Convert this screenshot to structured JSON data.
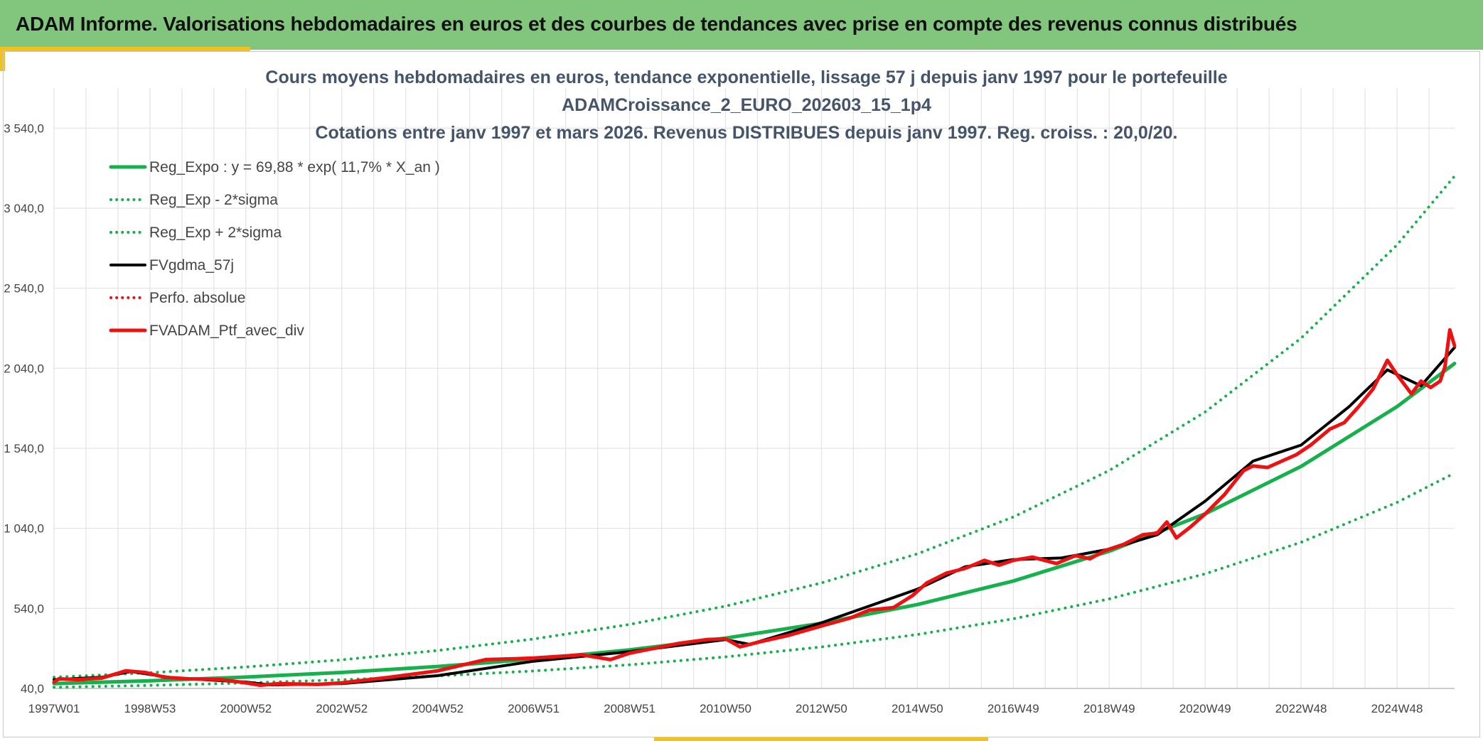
{
  "header": {
    "title": "ADAM Informe. Valorisations hebdomadaires en euros et des courbes de tendances avec prise en compte des revenus connus distribués"
  },
  "colors": {
    "header_bg": "#82c67d",
    "accent": "#f2c21b",
    "green_series": "#16b04c",
    "red_series": "#ee1111",
    "black_series": "#000000"
  },
  "chart_data": {
    "type": "line",
    "title_lines": [
      "Cours moyens hebdomadaires en euros, tendance exponentielle, lissage 57 j depuis janv 1997 pour le portefeuille",
      "ADAMCroissance_2_EURO_202603_15_1p4",
      "Cotations entre janv 1997 et mars 2026. Revenus DISTRIBUES depuis janv 1997. Reg. croiss. : 20,0/20."
    ],
    "xlabel": "",
    "ylabel": "",
    "ylim": [
      40,
      3790
    ],
    "y_ticks": [
      "40,0",
      "540,0",
      "1 040,0",
      "1 540,0",
      "2 040,0",
      "2 540,0",
      "3 040,0",
      "3 540,0"
    ],
    "y_tick_values": [
      40,
      540,
      1040,
      1540,
      2040,
      2540,
      3040,
      3540
    ],
    "xlim": [
      1997.0,
      2026.2
    ],
    "x_ticks": [
      "1997W01",
      "1998W53",
      "2000W52",
      "2002W52",
      "2004W52",
      "2006W51",
      "2008W51",
      "2010W50",
      "2012W50",
      "2014W50",
      "2016W49",
      "2018W49",
      "2020W49",
      "2022W48",
      "2024W48"
    ],
    "x_tick_values": [
      1997.0,
      1999.0,
      2001.0,
      2003.0,
      2005.0,
      2007.0,
      2009.0,
      2011.0,
      2013.0,
      2015.0,
      2017.0,
      2019.0,
      2021.0,
      2023.0,
      2025.0
    ],
    "grid": true,
    "legend_position": "top-left",
    "series": [
      {
        "name": "Reg_Expo : y = 69,88 * exp( 11,7% *  X_an )",
        "color": "#16b04c",
        "style": "solid",
        "width": 5,
        "x": [
          1997.0,
          1999.0,
          2001.0,
          2003.0,
          2005.0,
          2007.0,
          2009.0,
          2011.0,
          2013.0,
          2015.0,
          2017.0,
          2019.0,
          2021.0,
          2023.0,
          2025.0,
          2026.2
        ],
        "y": [
          70,
          88,
          111,
          140,
          177,
          223,
          281,
          354,
          447,
          564,
          711,
          897,
          1131,
          1427,
          1800,
          2070
        ]
      },
      {
        "name": "Reg_Exp - 2*sigma",
        "color": "#16b04c",
        "style": "dotted",
        "width": 4,
        "x": [
          1997.0,
          1999.0,
          2001.0,
          2003.0,
          2005.0,
          2007.0,
          2009.0,
          2011.0,
          2013.0,
          2015.0,
          2017.0,
          2019.0,
          2021.0,
          2023.0,
          2025.0,
          2026.2
        ],
        "y": [
          47,
          59,
          74,
          94,
          118,
          149,
          188,
          237,
          299,
          377,
          475,
          599,
          756,
          953,
          1202,
          1385
        ]
      },
      {
        "name": "Reg_Exp + 2*sigma",
        "color": "#16b04c",
        "style": "dotted",
        "width": 4,
        "x": [
          1997.0,
          1999.0,
          2001.0,
          2003.0,
          2005.0,
          2007.0,
          2009.0,
          2011.0,
          2013.0,
          2015.0,
          2017.0,
          2019.0,
          2021.0,
          2023.0,
          2025.0,
          2026.2
        ],
        "y": [
          110,
          138,
          174,
          219,
          277,
          349,
          440,
          554,
          699,
          881,
          1111,
          1401,
          1767,
          2228,
          2810,
          3240
        ]
      },
      {
        "name": "FVgdma_57j",
        "color": "#000000",
        "style": "solid",
        "width": 4,
        "x": [
          1997.0,
          1998.0,
          1998.6,
          1999.5,
          2001.0,
          2001.5,
          2003.0,
          2005.0,
          2007.0,
          2009.0,
          2011.0,
          2011.5,
          2013.0,
          2014.0,
          2015.0,
          2016.0,
          2017.0,
          2018.0,
          2019.0,
          2020.0,
          2021.0,
          2022.0,
          2023.0,
          2024.0,
          2024.8,
          2025.5,
          2026.2
        ],
        "y": [
          95,
          110,
          145,
          105,
          80,
          62,
          70,
          120,
          210,
          270,
          345,
          315,
          450,
          555,
          660,
          800,
          845,
          855,
          910,
          1000,
          1210,
          1460,
          1560,
          1800,
          2030,
          1930,
          2170
        ]
      },
      {
        "name": "Perfo. absolue",
        "color": "#ee1111",
        "style": "dotted",
        "width": 4,
        "x": [],
        "y": []
      },
      {
        "name": "FVADAM_Ptf_avec_div",
        "color": "#ee1111",
        "style": "solid",
        "width": 5,
        "x": [
          1997.0,
          1997.1,
          1997.5,
          1998.0,
          1998.5,
          1998.9,
          1999.3,
          1999.8,
          2000.5,
          2001.0,
          2001.3,
          2001.7,
          2002.5,
          2003.0,
          2004.0,
          2005.0,
          2006.0,
          2006.6,
          2007.0,
          2008.0,
          2008.6,
          2009.0,
          2009.5,
          2010.0,
          2010.6,
          2011.0,
          2011.3,
          2011.7,
          2012.3,
          2013.0,
          2013.6,
          2014.0,
          2014.5,
          2014.9,
          2015.2,
          2015.6,
          2016.0,
          2016.4,
          2016.7,
          2017.0,
          2017.4,
          2017.9,
          2018.3,
          2018.6,
          2018.9,
          2019.3,
          2019.7,
          2020.0,
          2020.2,
          2020.4,
          2020.7,
          2021.0,
          2021.4,
          2021.8,
          2022.0,
          2022.3,
          2022.6,
          2022.9,
          2023.2,
          2023.6,
          2023.9,
          2024.2,
          2024.5,
          2024.8,
          2025.0,
          2025.3,
          2025.5,
          2025.7,
          2025.9,
          2026.0,
          2026.1,
          2026.2
        ],
        "y": [
          80,
          100,
          95,
          105,
          150,
          140,
          110,
          100,
          95,
          75,
          60,
          70,
          65,
          75,
          110,
          150,
          220,
          225,
          230,
          250,
          220,
          260,
          290,
          320,
          345,
          350,
          300,
          330,
          370,
          430,
          480,
          530,
          545,
          620,
          700,
          760,
          790,
          840,
          810,
          840,
          860,
          820,
          870,
          850,
          900,
          940,
          1000,
          1010,
          1080,
          980,
          1050,
          1130,
          1250,
          1400,
          1430,
          1420,
          1460,
          1500,
          1560,
          1660,
          1700,
          1800,
          1910,
          2090,
          2000,
          1880,
          1960,
          1920,
          1960,
          2050,
          2280,
          2180
        ]
      }
    ]
  }
}
